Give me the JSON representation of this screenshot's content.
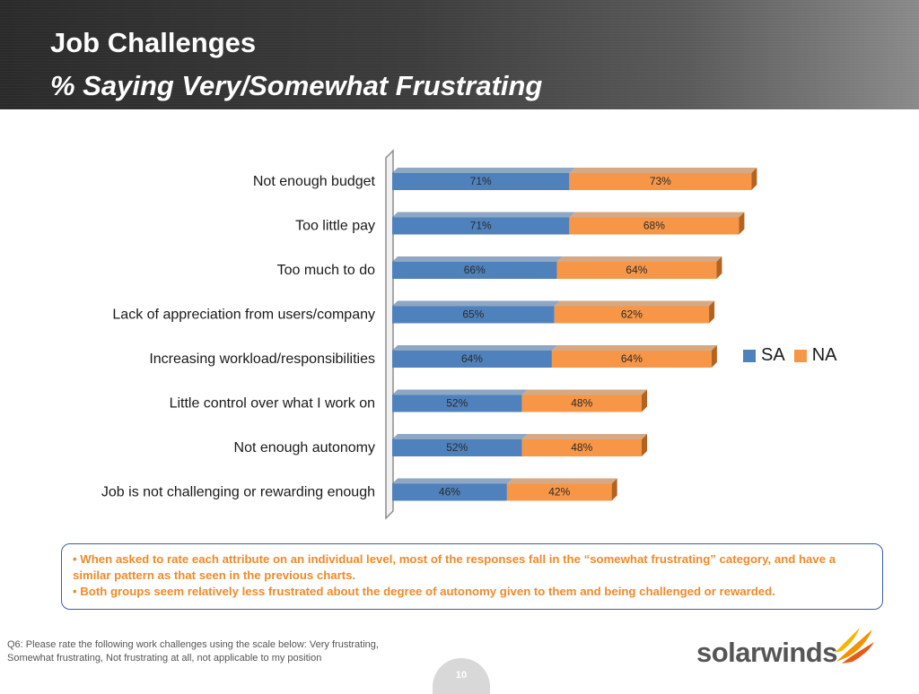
{
  "header": {
    "title": "Job Challenges",
    "subtitle": "%  Saying Very/Somewhat Frustrating"
  },
  "colors": {
    "sa": "#4f81bd",
    "na": "#f79646",
    "note_text": "#f08a2a",
    "note_border": "#3b5ea8"
  },
  "chart_data": {
    "type": "bar",
    "orientation": "horizontal",
    "stacked": true,
    "title": "Job Challenges % Saying Very/Somewhat Frustrating",
    "categories": [
      "Not enough budget",
      "Too little pay",
      "Too much to do",
      "Lack of appreciation from users/company",
      "Increasing workload/responsibilities",
      "Little control over what I work on",
      "Not enough autonomy",
      "Job is not challenging or rewarding enough"
    ],
    "series": [
      {
        "name": "SA",
        "values": [
          71,
          71,
          66,
          65,
          64,
          52,
          52,
          46
        ],
        "labels": [
          "71%",
          "71%",
          "66%",
          "65%",
          "64%",
          "52%",
          "52%",
          "46%"
        ]
      },
      {
        "name": "NA",
        "values": [
          73,
          68,
          64,
          62,
          64,
          48,
          48,
          42
        ],
        "labels": [
          "73%",
          "68%",
          "64%",
          "62%",
          "64%",
          "48%",
          "48%",
          "42%"
        ]
      }
    ],
    "legend": {
      "position": "right",
      "labels": [
        "SA",
        "NA"
      ]
    },
    "grid": false
  },
  "note": {
    "line1": "• When asked to rate  each attribute on an individual level, most of the responses fall in the “somewhat frustrating” category,  and have a similar pattern as that seen in the previous charts.",
    "line2": "• Both groups seem relatively less frustrated about the degree of autonomy given to them and being challenged or rewarded."
  },
  "footnote": "Q6: Please rate the following work challenges using the scale below:  Very frustrating, Somewhat frustrating, Not frustrating at all, not applicable to my position",
  "brand": {
    "name": "solarwinds"
  },
  "page_number": "10"
}
